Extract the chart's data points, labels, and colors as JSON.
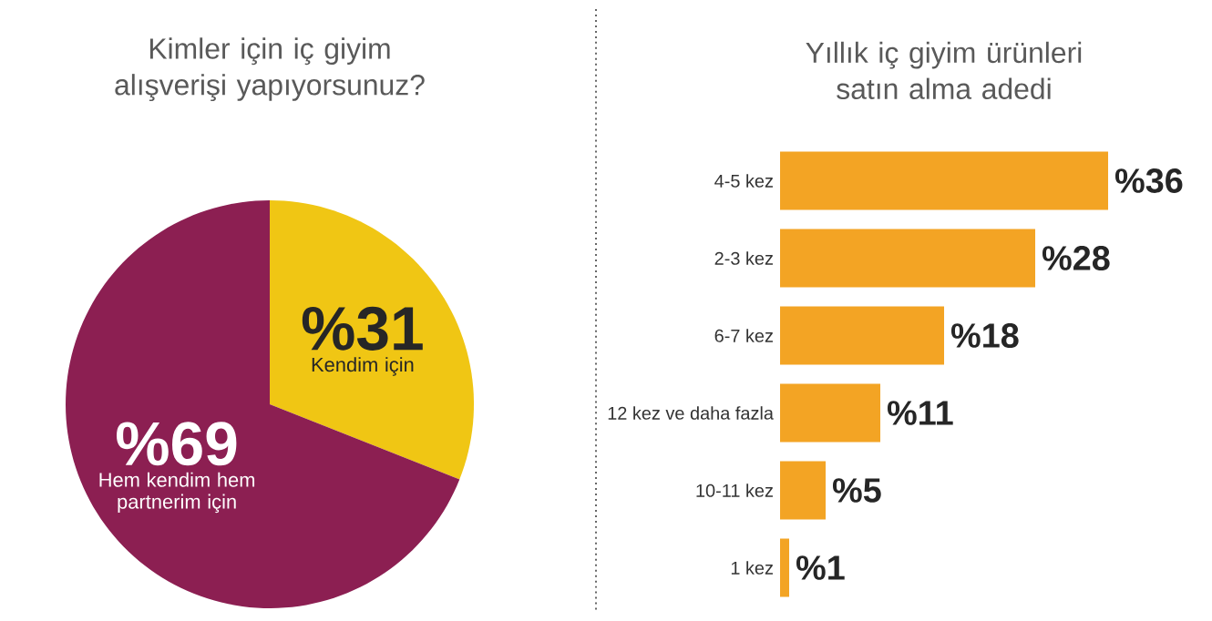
{
  "chart_data": [
    {
      "type": "pie",
      "title": "Kimler için iç giyim alışverişi yapıyorsunuz?",
      "categories": [
        "Kendim için",
        "Hem kendim hem partnerim için"
      ],
      "values": [
        31,
        69
      ],
      "colors": [
        "#f0c614",
        "#8c1f52"
      ],
      "value_labels": [
        "%31",
        "%69"
      ]
    },
    {
      "type": "bar",
      "orientation": "horizontal",
      "title": "Yıllık iç giyim ürünleri satın alma adedi",
      "categories": [
        "4-5 kez",
        "2-3 kez",
        "6-7 kez",
        "12 kez ve daha fazla",
        "10-11 kez",
        "1 kez"
      ],
      "values": [
        36,
        28,
        18,
        11,
        5,
        1
      ],
      "color": "#f3a424",
      "value_labels": [
        "%36",
        "%28",
        "%18",
        "%11",
        "%5",
        "%1"
      ]
    }
  ]
}
